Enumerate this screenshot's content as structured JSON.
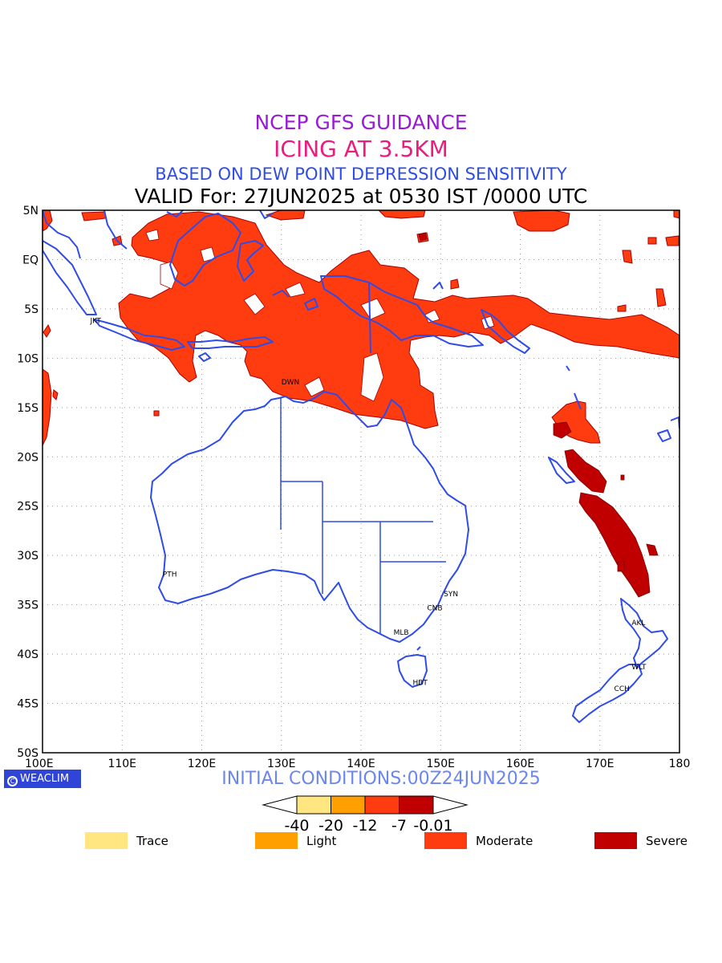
{
  "title": {
    "line1": "NCEP GFS GUIDANCE",
    "line2": "ICING AT 3.5KM",
    "line3": "BASED ON DEW POINT DEPRESSION SENSITIVITY",
    "line4": "VALID For: 27JUN2025 at 0530 IST /0000 UTC"
  },
  "lat_labels": [
    "5N",
    "EQ",
    "5S",
    "10S",
    "15S",
    "20S",
    "25S",
    "30S",
    "35S",
    "40S",
    "45S",
    "50S"
  ],
  "lon_labels": [
    "100E",
    "110E",
    "120E",
    "130E",
    "140E",
    "150E",
    "160E",
    "170E",
    "180"
  ],
  "cities": [
    {
      "name": "JKT",
      "lon": 106.8,
      "lat": -6.2
    },
    {
      "name": "DWN",
      "lon": 130.8,
      "lat": -12.4
    },
    {
      "name": "PTH",
      "lon": 115.9,
      "lat": -31.9
    },
    {
      "name": "SYN",
      "lon": 151.2,
      "lat": -33.9
    },
    {
      "name": "CNB",
      "lon": 149.1,
      "lat": -35.3
    },
    {
      "name": "MLB",
      "lon": 144.9,
      "lat": -37.8
    },
    {
      "name": "HBT",
      "lon": 147.3,
      "lat": -42.9
    },
    {
      "name": "AKL",
      "lon": 174.8,
      "lat": -36.8
    },
    {
      "name": "WLT",
      "lon": 174.8,
      "lat": -41.3
    },
    {
      "name": "CCH",
      "lon": 172.6,
      "lat": -43.5
    }
  ],
  "logo": "WEACLIM",
  "initial_conditions": "INITIAL CONDITIONS:00Z24JUN2025",
  "colorbar": {
    "ticks": [
      "-40",
      "-20",
      "-12",
      "-7",
      "-0.01"
    ],
    "colors": [
      "#ffe680",
      "#ffa000",
      "#ff3c10",
      "#c00000"
    ]
  },
  "legend": [
    {
      "label": "Trace",
      "color": "#ffe680"
    },
    {
      "label": "Light",
      "color": "#ffa000"
    },
    {
      "label": "Moderate",
      "color": "#ff3c10"
    },
    {
      "label": "Severe",
      "color": "#c00000"
    }
  ],
  "colors": {
    "coast": "#2f4ce6",
    "moderate": "#ff3c10",
    "severe": "#c00000"
  }
}
